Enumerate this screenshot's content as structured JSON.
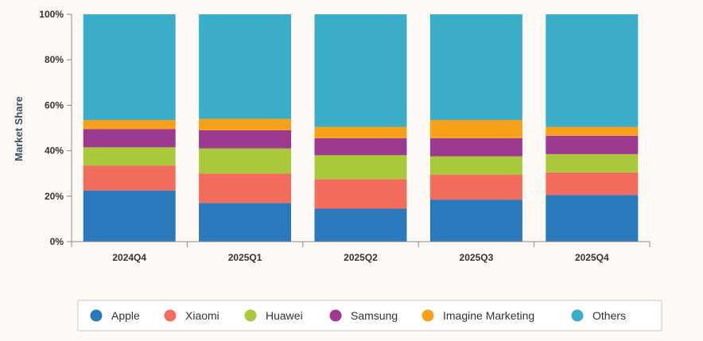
{
  "chart_data": {
    "type": "bar",
    "stacked": true,
    "title": "",
    "xlabel": "",
    "ylabel": "Market Share",
    "ylim": [
      0,
      100
    ],
    "yticks": [
      "0%",
      "20%",
      "40%",
      "60%",
      "80%",
      "100%"
    ],
    "ytick_values": [
      0,
      20,
      40,
      60,
      80,
      100
    ],
    "grid": false,
    "legend_position": "bottom",
    "categories": [
      "2024Q4",
      "2025Q1",
      "2025Q2",
      "2025Q3",
      "2025Q4"
    ],
    "series": [
      {
        "name": "Apple",
        "color": "#2a79bd",
        "values": [
          22.5,
          17,
          14.5,
          18.5,
          20.5
        ]
      },
      {
        "name": "Xiaomi",
        "color": "#f26d5b",
        "values": [
          11,
          13,
          13,
          11,
          10
        ]
      },
      {
        "name": "Huawei",
        "color": "#aac93a",
        "values": [
          8,
          11,
          10.5,
          8,
          8
        ]
      },
      {
        "name": "Samsung",
        "color": "#9b3a8f",
        "values": [
          8,
          8,
          7.5,
          8,
          8
        ]
      },
      {
        "name": "Imagine Marketing",
        "color": "#f7a11a",
        "values": [
          4,
          5,
          5,
          8,
          4
        ]
      },
      {
        "name": "Others",
        "color": "#3aaec8",
        "values": [
          46.5,
          46,
          49.5,
          46.5,
          49.5
        ]
      }
    ]
  }
}
